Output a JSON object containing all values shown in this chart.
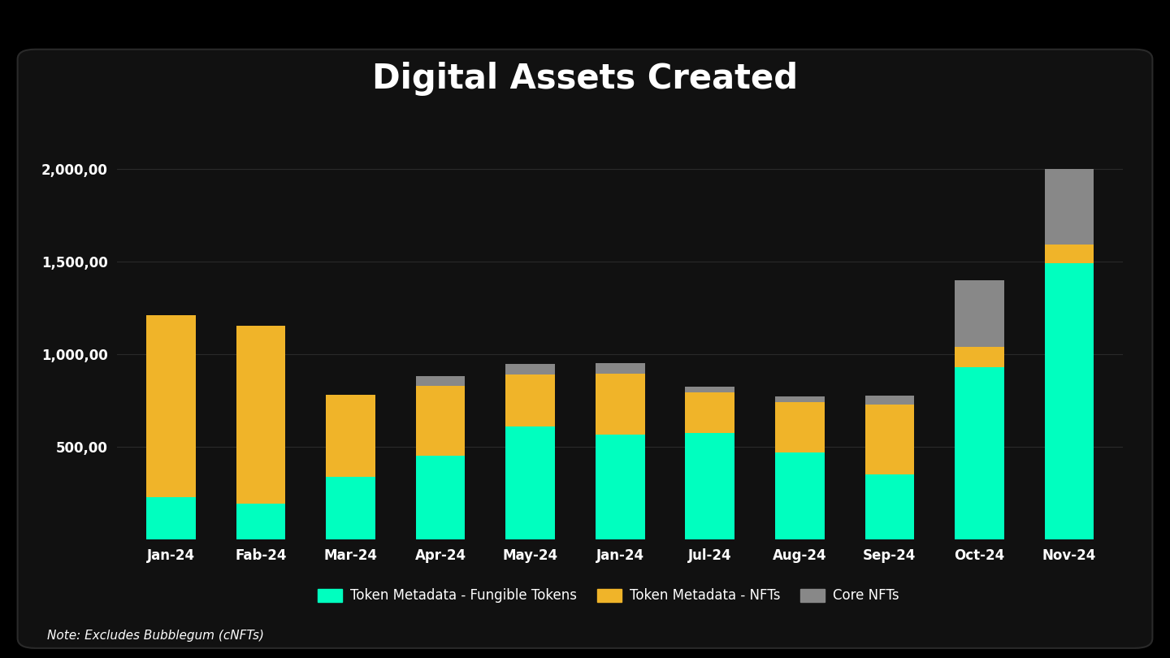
{
  "categories": [
    "Jan-24",
    "Fab-24",
    "Mar-24",
    "Apr-24",
    "May-24",
    "Jan-24",
    "Jul-24",
    "Aug-24",
    "Sep-24",
    "Oct-24",
    "Nov-24"
  ],
  "fungible_tokens": [
    230,
    195,
    340,
    450,
    610,
    565,
    575,
    470,
    350,
    930,
    1490
  ],
  "nfts": [
    980,
    960,
    440,
    380,
    280,
    330,
    220,
    270,
    380,
    110,
    100
  ],
  "core_nfts": [
    0,
    0,
    0,
    50,
    55,
    55,
    30,
    30,
    45,
    360,
    410
  ],
  "colors": {
    "fungible_tokens": "#00FFBF",
    "nfts": "#F0B429",
    "core_nfts": "#888888",
    "outer_bg": "#000000",
    "panel_bg": "#111111",
    "text": "#ffffff",
    "grid": "#2a2a2a"
  },
  "title": "Digital Assets Created",
  "title_fontsize": 30,
  "legend_labels": [
    "Token Metadata - Fungible Tokens",
    "Token Metadata - NFTs",
    "Core NFTs"
  ],
  "note": "Note: Excludes Bubblegum (cNFTs)",
  "ylim": [
    0,
    2200
  ],
  "yticks": [
    500,
    1000,
    1500,
    2000
  ],
  "ytick_labels": [
    "500,00",
    "1,000,00",
    "1,500,00",
    "2,000,00"
  ]
}
